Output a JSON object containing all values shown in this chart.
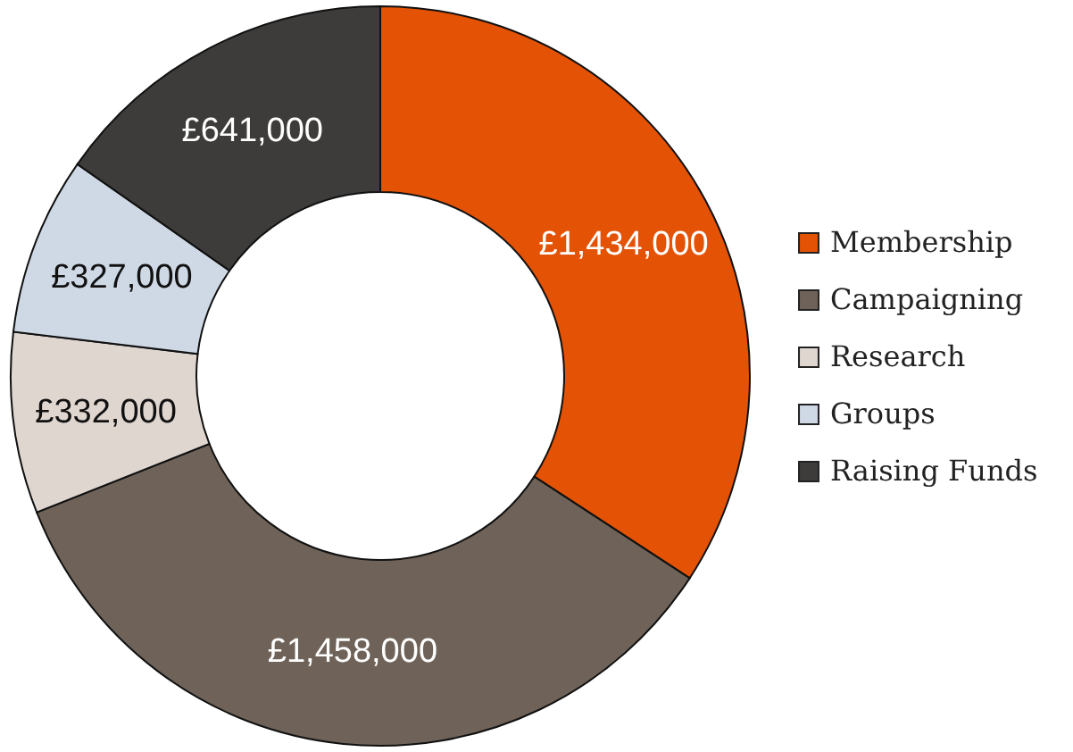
{
  "chart_data": {
    "type": "donut",
    "categories": [
      "Membership",
      "Campaigning",
      "Research",
      "Groups",
      "Raising Funds"
    ],
    "values": [
      1434000,
      1458000,
      332000,
      327000,
      641000
    ],
    "value_labels": [
      "£1,434,000",
      "£1,458,000",
      "£332,000",
      "£327,000",
      "£641,000"
    ],
    "colors": [
      "#e35205",
      "#6f6359",
      "#e0d6d0",
      "#cfd9e5",
      "#3d3c3a"
    ],
    "legend": "right"
  }
}
